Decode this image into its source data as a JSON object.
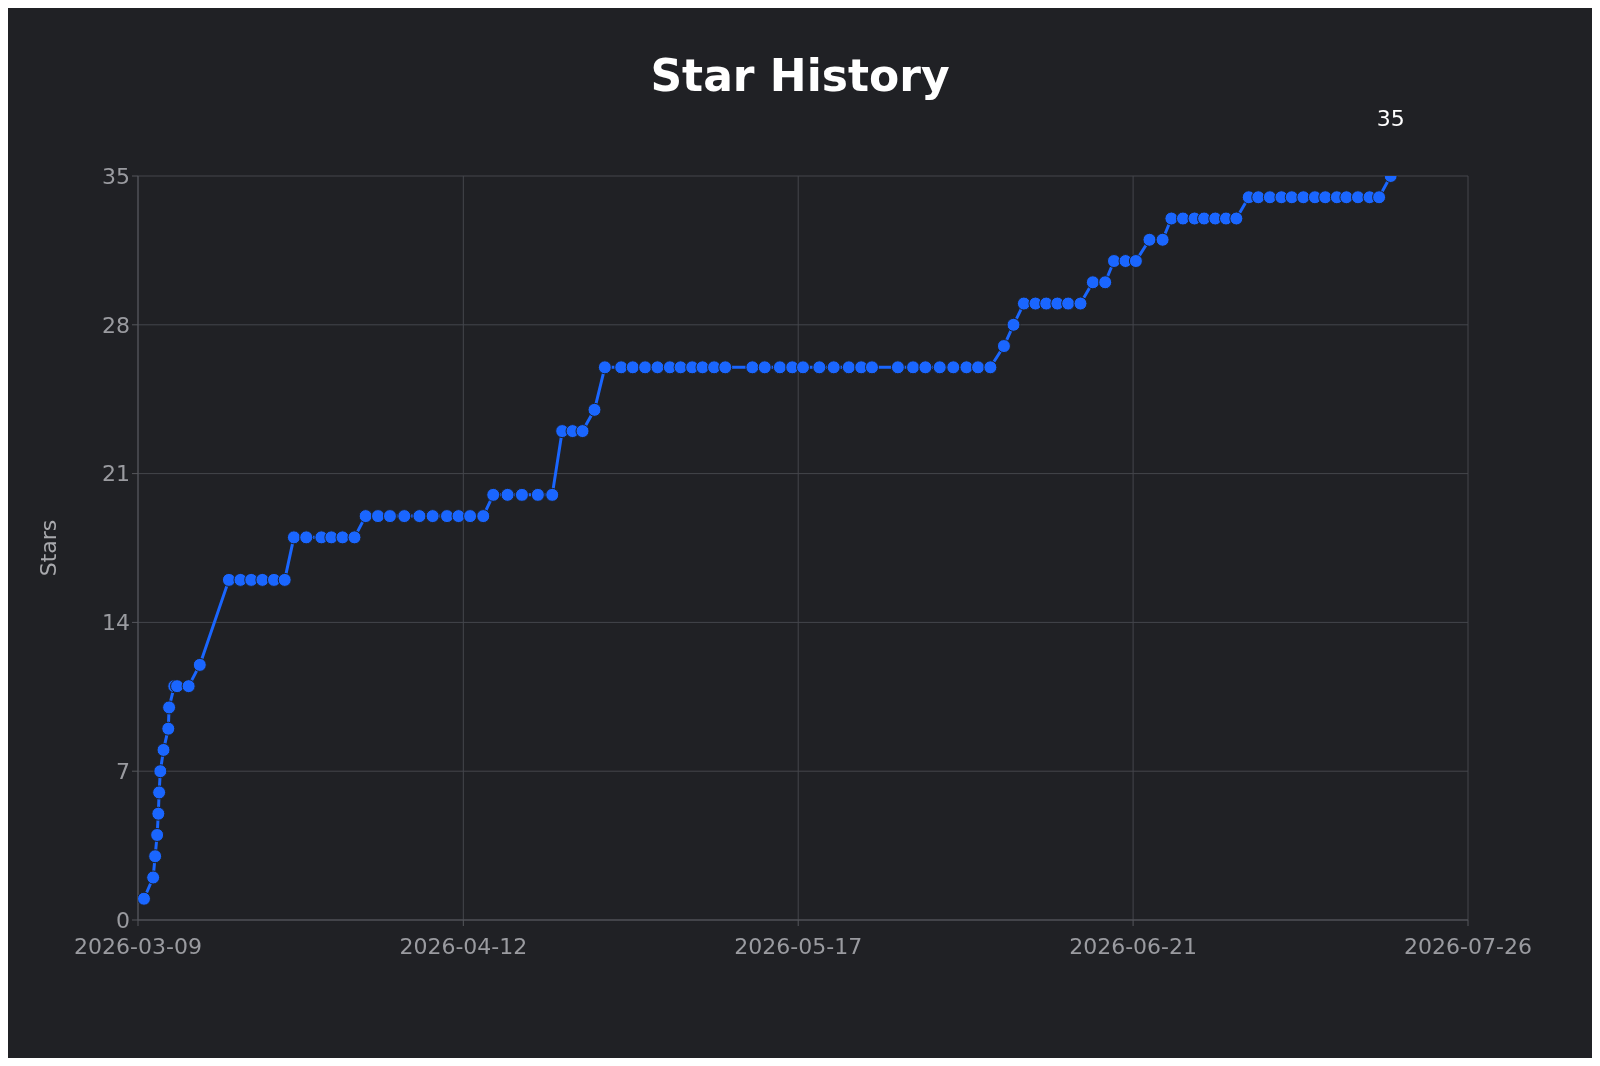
{
  "chart_data": {
    "type": "line",
    "title": "Star History",
    "ylabel": "Stars",
    "xlim": [
      "2026-03-09",
      "2026-07-26"
    ],
    "xticks": [
      "2026-03-09",
      "2026-04-12",
      "2026-05-17",
      "2026-06-21",
      "2026-07-26"
    ],
    "ylim": [
      0,
      35
    ],
    "yticks": [
      0,
      7,
      14,
      21,
      28,
      35
    ],
    "grid": true,
    "marker": "circle",
    "line_style": "solid",
    "annotations": [
      {
        "text": "35",
        "x": "2026-07-17T22:00",
        "y": 35
      }
    ],
    "series": [
      {
        "color": "#1a66ff",
        "x": [
          "2026-03-09T15:00",
          "2026-03-10T14:00",
          "2026-03-10T19:00",
          "2026-03-11T00:00",
          "2026-03-11T03:00",
          "2026-03-11T05:00",
          "2026-03-11T08:00",
          "2026-03-11T16:00",
          "2026-03-12T04:00",
          "2026-03-12T06:00",
          "2026-03-12T19:00",
          "2026-03-13T02:00",
          "2026-03-14T07:00",
          "2026-03-15T11:00",
          "2026-03-18T12:00",
          "2026-03-19T17:00",
          "2026-03-20T20:00",
          "2026-03-22T00:00",
          "2026-03-23T05:00",
          "2026-03-24T08:00",
          "2026-03-25T07:00",
          "2026-03-26T14:00",
          "2026-03-28T04:00",
          "2026-03-29T05:00",
          "2026-03-30T09:00",
          "2026-03-31T15:00",
          "2026-04-01T19:00",
          "2026-04-03T02:00",
          "2026-04-04T08:00",
          "2026-04-05T20:00",
          "2026-04-07T10:00",
          "2026-04-08T19:00",
          "2026-04-10T07:00",
          "2026-04-11T12:00",
          "2026-04-12T17:00",
          "2026-04-14T02:00",
          "2026-04-15T03:00",
          "2026-04-16T15:00",
          "2026-04-18T03:00",
          "2026-04-19T19:00",
          "2026-04-21T07:00",
          "2026-04-22T08:00",
          "2026-04-23T10:00",
          "2026-04-24T11:00",
          "2026-04-25T17:00",
          "2026-04-26T19:00",
          "2026-04-28T12:00",
          "2026-04-29T17:00",
          "2026-05-01T00:00",
          "2026-05-02T07:00",
          "2026-05-03T14:00",
          "2026-05-04T17:00",
          "2026-05-05T22:00",
          "2026-05-07T00:00",
          "2026-05-08T05:00",
          "2026-05-09T09:00",
          "2026-05-12T05:00",
          "2026-05-13T12:00",
          "2026-05-15T02:00",
          "2026-05-16T09:00",
          "2026-05-17T12:00",
          "2026-05-19T05:00",
          "2026-05-20T17:00",
          "2026-05-22T07:00",
          "2026-05-23T14:00",
          "2026-05-24T17:00",
          "2026-05-27T10:00",
          "2026-05-29T00:00",
          "2026-05-30T07:00",
          "2026-05-31T19:00",
          "2026-06-02T05:00",
          "2026-06-03T14:00",
          "2026-06-04T19:00",
          "2026-06-06T02:00",
          "2026-06-07T12:00",
          "2026-06-08T12:00",
          "2026-06-09T14:00",
          "2026-06-10T19:00",
          "2026-06-11T22:00",
          "2026-06-13T02:00",
          "2026-06-14T05:00",
          "2026-06-15T12:00",
          "2026-06-16T19:00",
          "2026-06-18T02:00",
          "2026-06-19T00:00",
          "2026-06-20T05:00",
          "2026-06-21T07:00",
          "2026-06-22T17:00",
          "2026-06-24T02:00",
          "2026-06-25T00:00",
          "2026-06-26T05:00",
          "2026-06-27T10:00",
          "2026-06-28T10:00",
          "2026-06-29T14:00",
          "2026-06-30T17:00",
          "2026-07-01T19:00",
          "2026-07-03T02:00",
          "2026-07-04T02:00",
          "2026-07-05T07:00",
          "2026-07-06T12:00",
          "2026-07-07T14:00",
          "2026-07-08T19:00",
          "2026-07-10T00:00",
          "2026-07-11T02:00",
          "2026-07-12T07:00",
          "2026-07-13T07:00",
          "2026-07-14T12:00",
          "2026-07-15T17:00",
          "2026-07-16T17:00",
          "2026-07-17T22:00"
        ],
        "values": [
          1,
          2,
          3,
          4,
          5,
          6,
          7,
          8,
          9,
          10,
          11,
          11,
          11,
          12,
          16,
          16,
          16,
          16,
          16,
          16,
          18,
          18,
          18,
          18,
          18,
          18,
          19,
          19,
          19,
          19,
          19,
          19,
          19,
          19,
          19,
          19,
          20,
          20,
          20,
          20,
          20,
          23,
          23,
          23,
          24,
          26,
          26,
          26,
          26,
          26,
          26,
          26,
          26,
          26,
          26,
          26,
          26,
          26,
          26,
          26,
          26,
          26,
          26,
          26,
          26,
          26,
          26,
          26,
          26,
          26,
          26,
          26,
          26,
          26,
          27,
          28,
          29,
          29,
          29,
          29,
          29,
          29,
          30,
          30,
          31,
          31,
          31,
          32,
          32,
          33,
          33,
          33,
          33,
          33,
          33,
          33,
          34,
          34,
          34,
          34,
          34,
          34,
          34,
          34,
          34,
          34,
          34,
          34,
          34,
          35
        ]
      }
    ]
  }
}
